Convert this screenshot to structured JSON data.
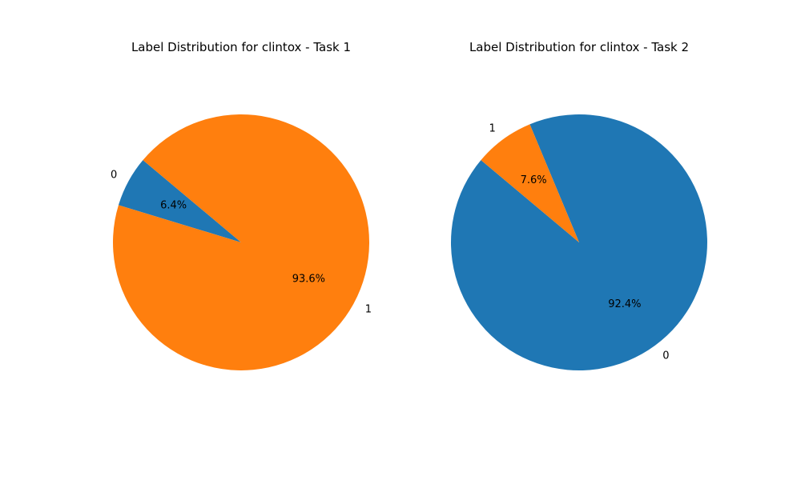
{
  "chart_data": [
    {
      "type": "pie",
      "title": "Label Distribution for clintox - Task 1",
      "labels": [
        "0",
        "1"
      ],
      "values": [
        6.4,
        93.6
      ],
      "percent_labels": [
        "6.4%",
        "93.6%"
      ],
      "colors": [
        "#1f77b4",
        "#ff7f0e"
      ]
    },
    {
      "type": "pie",
      "title": "Label Distribution for clintox - Task 2",
      "labels": [
        "0",
        "1"
      ],
      "values": [
        92.4,
        7.6
      ],
      "percent_labels": [
        "92.4%",
        "7.6%"
      ],
      "colors": [
        "#1f77b4",
        "#ff7f0e"
      ]
    }
  ]
}
